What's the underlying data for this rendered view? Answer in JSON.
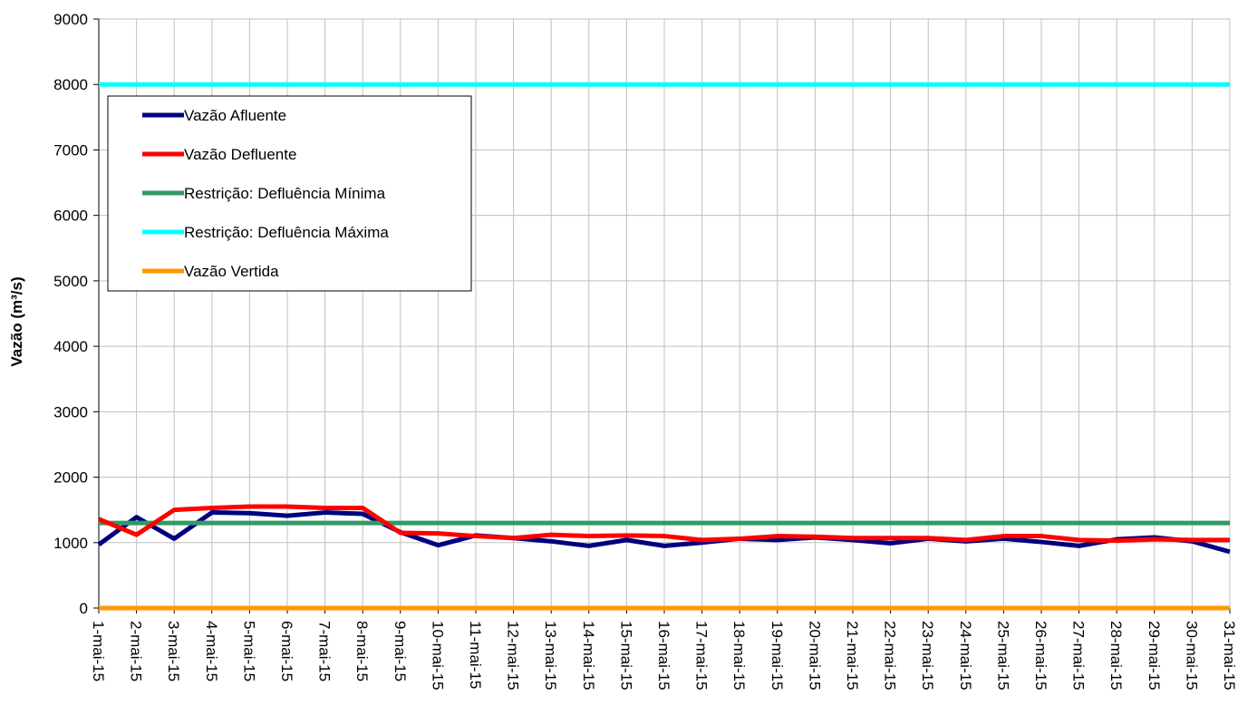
{
  "chart_data": {
    "type": "line",
    "title": "",
    "xlabel": "",
    "ylabel": "Vazão (m³/s)",
    "ylim": [
      0,
      9000
    ],
    "yticks": [
      0,
      1000,
      2000,
      3000,
      4000,
      5000,
      6000,
      7000,
      8000,
      9000
    ],
    "grid": true,
    "legend_position": "top-left",
    "categories": [
      "1-mai-15",
      "2-mai-15",
      "3-mai-15",
      "4-mai-15",
      "5-mai-15",
      "6-mai-15",
      "7-mai-15",
      "8-mai-15",
      "9-mai-15",
      "10-mai-15",
      "11-mai-15",
      "12-mai-15",
      "13-mai-15",
      "14-mai-15",
      "15-mai-15",
      "16-mai-15",
      "17-mai-15",
      "18-mai-15",
      "19-mai-15",
      "20-mai-15",
      "21-mai-15",
      "22-mai-15",
      "23-mai-15",
      "24-mai-15",
      "25-mai-15",
      "26-mai-15",
      "27-mai-15",
      "28-mai-15",
      "29-mai-15",
      "30-mai-15",
      "31-mai-15"
    ],
    "series": [
      {
        "name": "Vazão Afluente",
        "color": "#000080",
        "values": [
          970,
          1390,
          1060,
          1460,
          1450,
          1410,
          1460,
          1440,
          1160,
          960,
          1110,
          1070,
          1020,
          950,
          1040,
          950,
          1000,
          1060,
          1040,
          1080,
          1040,
          990,
          1060,
          1020,
          1060,
          1010,
          950,
          1050,
          1080,
          1020,
          860
        ]
      },
      {
        "name": "Vazão Defluente",
        "color": "#ff0000",
        "values": [
          1360,
          1120,
          1500,
          1530,
          1550,
          1550,
          1530,
          1530,
          1150,
          1140,
          1100,
          1070,
          1120,
          1100,
          1110,
          1100,
          1040,
          1060,
          1100,
          1090,
          1070,
          1070,
          1070,
          1040,
          1100,
          1100,
          1040,
          1030,
          1050,
          1040,
          1040
        ]
      },
      {
        "name": "Restrição: Defluência Mínima",
        "color": "#339966",
        "values": [
          1300,
          1300,
          1300,
          1300,
          1300,
          1300,
          1300,
          1300,
          1300,
          1300,
          1300,
          1300,
          1300,
          1300,
          1300,
          1300,
          1300,
          1300,
          1300,
          1300,
          1300,
          1300,
          1300,
          1300,
          1300,
          1300,
          1300,
          1300,
          1300,
          1300,
          1300
        ]
      },
      {
        "name": "Restrição: Defluência Máxima",
        "color": "#00ffff",
        "values": [
          8000,
          8000,
          8000,
          8000,
          8000,
          8000,
          8000,
          8000,
          8000,
          8000,
          8000,
          8000,
          8000,
          8000,
          8000,
          8000,
          8000,
          8000,
          8000,
          8000,
          8000,
          8000,
          8000,
          8000,
          8000,
          8000,
          8000,
          8000,
          8000,
          8000,
          8000
        ]
      },
      {
        "name": "Vazão Vertida",
        "color": "#ff9900",
        "values": [
          0,
          0,
          0,
          0,
          0,
          0,
          0,
          0,
          0,
          0,
          0,
          0,
          0,
          0,
          0,
          0,
          0,
          0,
          0,
          0,
          0,
          0,
          0,
          0,
          0,
          0,
          0,
          0,
          0,
          0,
          0
        ]
      }
    ]
  }
}
